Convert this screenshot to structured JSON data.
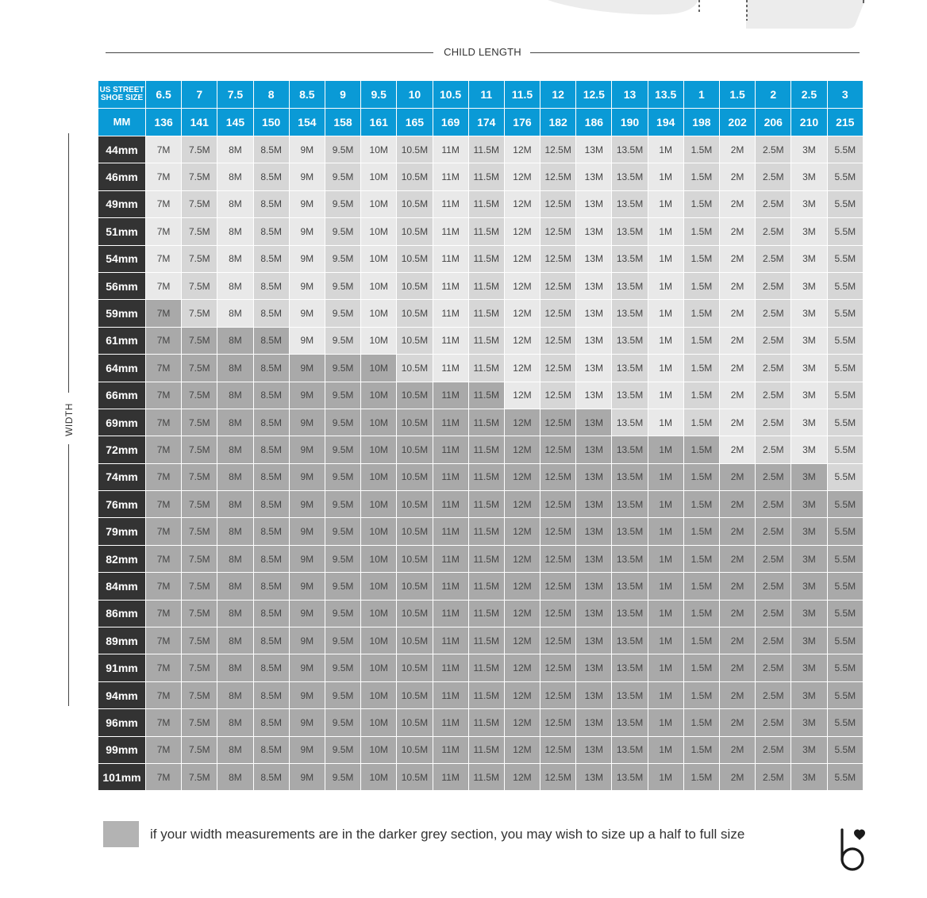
{
  "header": {
    "child_length_label": "CHILD LENGTH",
    "width_label": "WIDTH"
  },
  "table": {
    "corner_label_line1": "US STREET",
    "corner_label_line2": "SHOE SIZE",
    "mm_label": "MM",
    "us_sizes": [
      "6.5",
      "7",
      "7.5",
      "8",
      "8.5",
      "9",
      "9.5",
      "10",
      "10.5",
      "11",
      "11.5",
      "12",
      "12.5",
      "13",
      "13.5",
      "1",
      "1.5",
      "2",
      "2.5",
      "3"
    ],
    "mm_values": [
      "136",
      "141",
      "145",
      "150",
      "154",
      "158",
      "161",
      "165",
      "169",
      "174",
      "176",
      "182",
      "186",
      "190",
      "194",
      "198",
      "202",
      "206",
      "210",
      "215"
    ],
    "cell_values": [
      "7M",
      "7.5M",
      "8M",
      "8.5M",
      "9M",
      "9.5M",
      "10M",
      "10.5M",
      "11M",
      "11.5M",
      "12M",
      "12.5M",
      "13M",
      "13.5M",
      "1M",
      "1.5M",
      "2M",
      "2.5M",
      "3M",
      "5.5M"
    ],
    "rows": [
      {
        "width": "44mm",
        "dark_cols": 0
      },
      {
        "width": "46mm",
        "dark_cols": 0
      },
      {
        "width": "49mm",
        "dark_cols": 0
      },
      {
        "width": "51mm",
        "dark_cols": 0
      },
      {
        "width": "54mm",
        "dark_cols": 0
      },
      {
        "width": "56mm",
        "dark_cols": 0
      },
      {
        "width": "59mm",
        "dark_cols": 1
      },
      {
        "width": "61mm",
        "dark_cols": 4
      },
      {
        "width": "64mm",
        "dark_cols": 7
      },
      {
        "width": "66mm",
        "dark_cols": 10
      },
      {
        "width": "69mm",
        "dark_cols": 13
      },
      {
        "width": "72mm",
        "dark_cols": 16
      },
      {
        "width": "74mm",
        "dark_cols": 19
      },
      {
        "width": "76mm",
        "dark_cols": 20
      },
      {
        "width": "79mm",
        "dark_cols": 20
      },
      {
        "width": "82mm",
        "dark_cols": 20
      },
      {
        "width": "84mm",
        "dark_cols": 20
      },
      {
        "width": "86mm",
        "dark_cols": 20
      },
      {
        "width": "89mm",
        "dark_cols": 20
      },
      {
        "width": "91mm",
        "dark_cols": 20
      },
      {
        "width": "94mm",
        "dark_cols": 20
      },
      {
        "width": "96mm",
        "dark_cols": 20
      },
      {
        "width": "99mm",
        "dark_cols": 20
      },
      {
        "width": "101mm",
        "dark_cols": 20
      }
    ]
  },
  "legend": {
    "text": "if your width measurements are in the darker grey section, you may wish to size up a half to full size"
  },
  "colors": {
    "header_blue": "#0a9ad6",
    "row_header": "#333333",
    "light_grey_a": "#e9e9e9",
    "light_grey_b": "#d6d6d6",
    "dark_grey": "#a9a9a9"
  },
  "icons": {
    "brand_logo": "b-heart-logo"
  }
}
